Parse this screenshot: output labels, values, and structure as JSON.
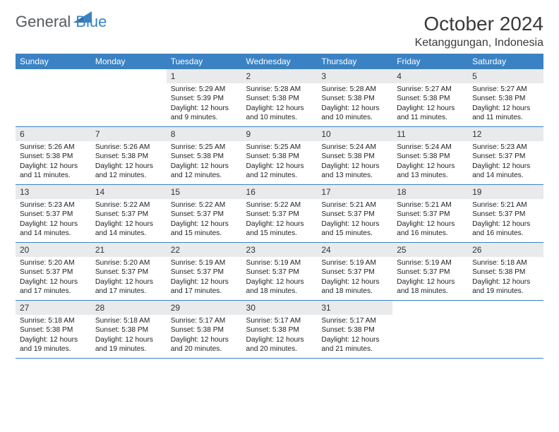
{
  "brand": {
    "part1": "General",
    "part2": "Blue"
  },
  "title": "October 2024",
  "location": "Ketanggungan, Indonesia",
  "colors": {
    "header_bg": "#3b82c4",
    "header_fg": "#ffffff",
    "daynum_bg": "#e9eaec",
    "grid_border": "#3b82c4",
    "page_bg": "#ffffff",
    "title_color": "#3a3a3a",
    "brand_gray": "#555a5e",
    "brand_blue": "#3b82c4"
  },
  "day_names": [
    "Sunday",
    "Monday",
    "Tuesday",
    "Wednesday",
    "Thursday",
    "Friday",
    "Saturday"
  ],
  "weeks": [
    [
      {
        "empty": true
      },
      {
        "empty": true
      },
      {
        "n": "1",
        "sr": "5:29 AM",
        "ss": "5:39 PM",
        "dl": "12 hours and 9 minutes."
      },
      {
        "n": "2",
        "sr": "5:28 AM",
        "ss": "5:38 PM",
        "dl": "12 hours and 10 minutes."
      },
      {
        "n": "3",
        "sr": "5:28 AM",
        "ss": "5:38 PM",
        "dl": "12 hours and 10 minutes."
      },
      {
        "n": "4",
        "sr": "5:27 AM",
        "ss": "5:38 PM",
        "dl": "12 hours and 11 minutes."
      },
      {
        "n": "5",
        "sr": "5:27 AM",
        "ss": "5:38 PM",
        "dl": "12 hours and 11 minutes."
      }
    ],
    [
      {
        "n": "6",
        "sr": "5:26 AM",
        "ss": "5:38 PM",
        "dl": "12 hours and 11 minutes."
      },
      {
        "n": "7",
        "sr": "5:26 AM",
        "ss": "5:38 PM",
        "dl": "12 hours and 12 minutes."
      },
      {
        "n": "8",
        "sr": "5:25 AM",
        "ss": "5:38 PM",
        "dl": "12 hours and 12 minutes."
      },
      {
        "n": "9",
        "sr": "5:25 AM",
        "ss": "5:38 PM",
        "dl": "12 hours and 12 minutes."
      },
      {
        "n": "10",
        "sr": "5:24 AM",
        "ss": "5:38 PM",
        "dl": "12 hours and 13 minutes."
      },
      {
        "n": "11",
        "sr": "5:24 AM",
        "ss": "5:38 PM",
        "dl": "12 hours and 13 minutes."
      },
      {
        "n": "12",
        "sr": "5:23 AM",
        "ss": "5:37 PM",
        "dl": "12 hours and 14 minutes."
      }
    ],
    [
      {
        "n": "13",
        "sr": "5:23 AM",
        "ss": "5:37 PM",
        "dl": "12 hours and 14 minutes."
      },
      {
        "n": "14",
        "sr": "5:22 AM",
        "ss": "5:37 PM",
        "dl": "12 hours and 14 minutes."
      },
      {
        "n": "15",
        "sr": "5:22 AM",
        "ss": "5:37 PM",
        "dl": "12 hours and 15 minutes."
      },
      {
        "n": "16",
        "sr": "5:22 AM",
        "ss": "5:37 PM",
        "dl": "12 hours and 15 minutes."
      },
      {
        "n": "17",
        "sr": "5:21 AM",
        "ss": "5:37 PM",
        "dl": "12 hours and 15 minutes."
      },
      {
        "n": "18",
        "sr": "5:21 AM",
        "ss": "5:37 PM",
        "dl": "12 hours and 16 minutes."
      },
      {
        "n": "19",
        "sr": "5:21 AM",
        "ss": "5:37 PM",
        "dl": "12 hours and 16 minutes."
      }
    ],
    [
      {
        "n": "20",
        "sr": "5:20 AM",
        "ss": "5:37 PM",
        "dl": "12 hours and 17 minutes."
      },
      {
        "n": "21",
        "sr": "5:20 AM",
        "ss": "5:37 PM",
        "dl": "12 hours and 17 minutes."
      },
      {
        "n": "22",
        "sr": "5:19 AM",
        "ss": "5:37 PM",
        "dl": "12 hours and 17 minutes."
      },
      {
        "n": "23",
        "sr": "5:19 AM",
        "ss": "5:37 PM",
        "dl": "12 hours and 18 minutes."
      },
      {
        "n": "24",
        "sr": "5:19 AM",
        "ss": "5:37 PM",
        "dl": "12 hours and 18 minutes."
      },
      {
        "n": "25",
        "sr": "5:19 AM",
        "ss": "5:37 PM",
        "dl": "12 hours and 18 minutes."
      },
      {
        "n": "26",
        "sr": "5:18 AM",
        "ss": "5:38 PM",
        "dl": "12 hours and 19 minutes."
      }
    ],
    [
      {
        "n": "27",
        "sr": "5:18 AM",
        "ss": "5:38 PM",
        "dl": "12 hours and 19 minutes."
      },
      {
        "n": "28",
        "sr": "5:18 AM",
        "ss": "5:38 PM",
        "dl": "12 hours and 19 minutes."
      },
      {
        "n": "29",
        "sr": "5:17 AM",
        "ss": "5:38 PM",
        "dl": "12 hours and 20 minutes."
      },
      {
        "n": "30",
        "sr": "5:17 AM",
        "ss": "5:38 PM",
        "dl": "12 hours and 20 minutes."
      },
      {
        "n": "31",
        "sr": "5:17 AM",
        "ss": "5:38 PM",
        "dl": "12 hours and 21 minutes."
      },
      {
        "empty": true
      },
      {
        "empty": true
      }
    ]
  ],
  "labels": {
    "sunrise": "Sunrise: ",
    "sunset": "Sunset: ",
    "daylight": "Daylight: "
  }
}
